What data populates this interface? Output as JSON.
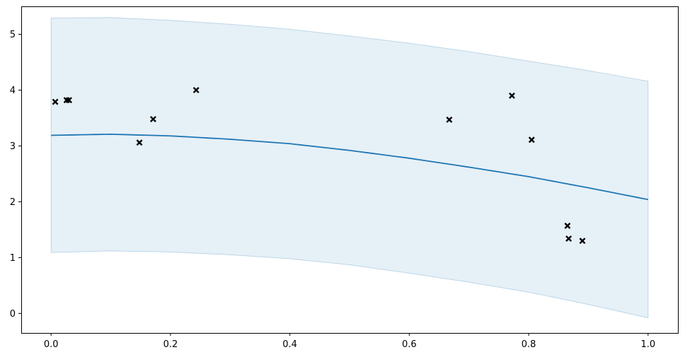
{
  "chart_data": {
    "type": "line",
    "title": "",
    "xlabel": "",
    "ylabel": "",
    "xlim": [
      -0.05,
      1.05
    ],
    "ylim": [
      -0.35,
      5.5
    ],
    "grid": false,
    "legend": null,
    "x_ticks": [
      {
        "value": 0.0,
        "label": "0.0"
      },
      {
        "value": 0.2,
        "label": "0.2"
      },
      {
        "value": 0.4,
        "label": "0.4"
      },
      {
        "value": 0.6,
        "label": "0.6"
      },
      {
        "value": 0.8,
        "label": "0.8"
      },
      {
        "value": 1.0,
        "label": "1.0"
      }
    ],
    "y_ticks": [
      {
        "value": 0,
        "label": "0"
      },
      {
        "value": 1,
        "label": "1"
      },
      {
        "value": 2,
        "label": "2"
      },
      {
        "value": 3,
        "label": "3"
      },
      {
        "value": 4,
        "label": "4"
      },
      {
        "value": 5,
        "label": "5"
      }
    ],
    "mean_curve": {
      "color": "#1f77b4",
      "x": [
        0.0,
        0.1,
        0.2,
        0.3,
        0.4,
        0.5,
        0.6,
        0.7,
        0.8,
        0.9,
        1.0
      ],
      "y": [
        3.19,
        3.21,
        3.18,
        3.12,
        3.04,
        2.92,
        2.78,
        2.62,
        2.45,
        2.25,
        2.04
      ]
    },
    "confidence_band": {
      "color": "#1f77b4",
      "x": [
        0.0,
        0.1,
        0.2,
        0.3,
        0.4,
        0.5,
        0.6,
        0.7,
        0.8,
        0.9,
        1.0
      ],
      "upper": [
        5.29,
        5.3,
        5.25,
        5.18,
        5.09,
        4.97,
        4.84,
        4.69,
        4.52,
        4.35,
        4.16
      ],
      "lower": [
        1.09,
        1.12,
        1.1,
        1.05,
        0.98,
        0.87,
        0.72,
        0.56,
        0.38,
        0.16,
        -0.08
      ]
    },
    "observations": {
      "color": "#000000",
      "marker": "x",
      "points": [
        {
          "x": 0.007,
          "y": 3.79
        },
        {
          "x": 0.026,
          "y": 3.82
        },
        {
          "x": 0.03,
          "y": 3.82
        },
        {
          "x": 0.148,
          "y": 3.06
        },
        {
          "x": 0.171,
          "y": 3.48
        },
        {
          "x": 0.243,
          "y": 4.0
        },
        {
          "x": 0.667,
          "y": 3.47
        },
        {
          "x": 0.772,
          "y": 3.9
        },
        {
          "x": 0.805,
          "y": 3.11
        },
        {
          "x": 0.865,
          "y": 1.57
        },
        {
          "x": 0.867,
          "y": 1.34
        },
        {
          "x": 0.89,
          "y": 1.3
        }
      ]
    }
  }
}
